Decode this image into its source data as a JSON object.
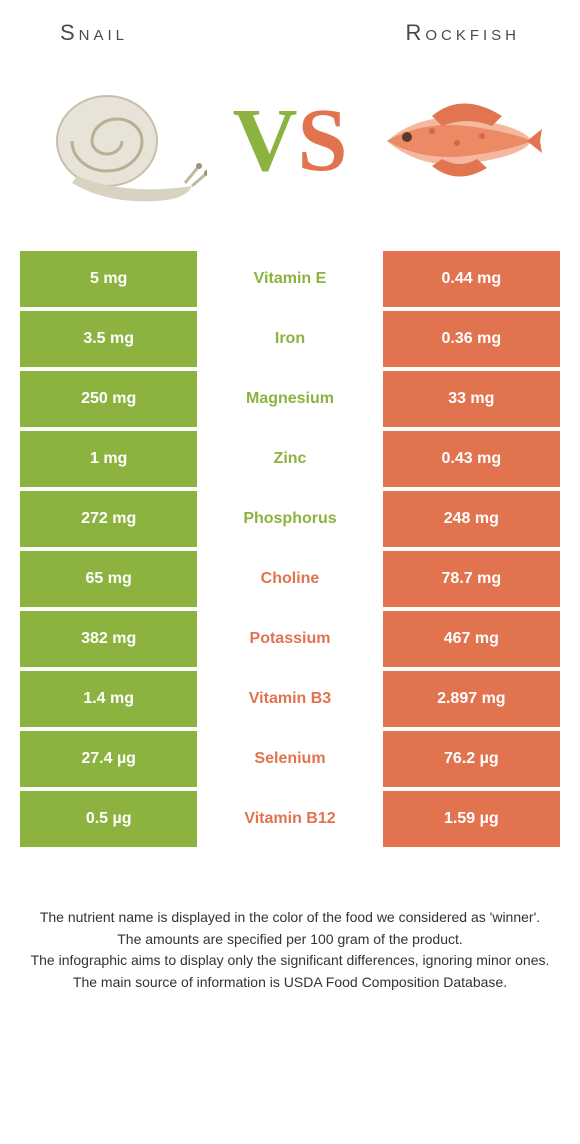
{
  "colors": {
    "left": "#8cb33f",
    "right": "#e2734f",
    "vs_left": "#8cb33f",
    "vs_right": "#e2734f"
  },
  "foods": {
    "left": "Snail",
    "right": "Rockfish"
  },
  "vs": {
    "v": "V",
    "s": "S"
  },
  "rows": [
    {
      "left": "5 mg",
      "label": "Vitamin E",
      "right": "0.44 mg",
      "winner": "left"
    },
    {
      "left": "3.5 mg",
      "label": "Iron",
      "right": "0.36 mg",
      "winner": "left"
    },
    {
      "left": "250 mg",
      "label": "Magnesium",
      "right": "33 mg",
      "winner": "left"
    },
    {
      "left": "1 mg",
      "label": "Zinc",
      "right": "0.43 mg",
      "winner": "left"
    },
    {
      "left": "272 mg",
      "label": "Phosphorus",
      "right": "248 mg",
      "winner": "left"
    },
    {
      "left": "65 mg",
      "label": "Choline",
      "right": "78.7 mg",
      "winner": "right"
    },
    {
      "left": "382 mg",
      "label": "Potassium",
      "right": "467 mg",
      "winner": "right"
    },
    {
      "left": "1.4 mg",
      "label": "Vitamin B3",
      "right": "2.897 mg",
      "winner": "right"
    },
    {
      "left": "27.4 µg",
      "label": "Selenium",
      "right": "76.2 µg",
      "winner": "right"
    },
    {
      "left": "0.5 µg",
      "label": "Vitamin B12",
      "right": "1.59 µg",
      "winner": "right"
    }
  ],
  "footer": {
    "l1": "The nutrient name is displayed in the color of the food we considered as 'winner'.",
    "l2": "The amounts are specified per 100 gram of the product.",
    "l3": "The infographic aims to display only the significant differences, ignoring minor ones.",
    "l4": "The main source of information is USDA Food Composition Database."
  }
}
